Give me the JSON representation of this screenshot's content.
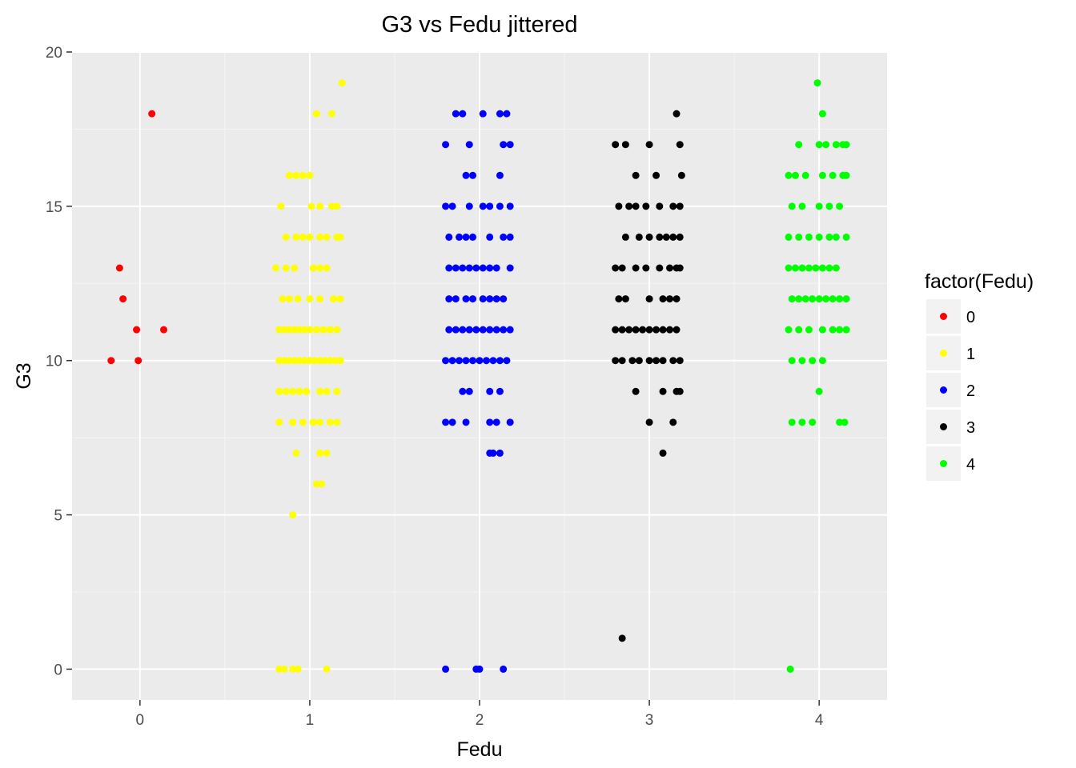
{
  "chart_data": {
    "type": "scatter",
    "title": "G3 vs Fedu jittered",
    "xlabel": "Fedu",
    "ylabel": "G3",
    "xlim": [
      -0.4,
      4.4
    ],
    "ylim": [
      -1,
      20
    ],
    "x_ticks": [
      "0",
      "1",
      "2",
      "3",
      "4"
    ],
    "y_ticks": [
      "0",
      "5",
      "10",
      "15",
      "20"
    ],
    "grid": true,
    "panel_background": "#ebebeb",
    "jitter": "horizontal, about ±0.2",
    "legend": {
      "title": "factor(Fedu)",
      "position": "right"
    },
    "series": [
      {
        "name": "0",
        "color": "#ff0000",
        "points": [
          [
            -0.17,
            10
          ],
          [
            -0.01,
            10
          ],
          [
            -0.02,
            11
          ],
          [
            0.14,
            11
          ],
          [
            -0.1,
            12
          ],
          [
            -0.12,
            13
          ],
          [
            0.07,
            18
          ]
        ]
      },
      {
        "name": "1",
        "color": "#ffff00",
        "points": [
          [
            0.82,
            0
          ],
          [
            0.85,
            0
          ],
          [
            0.9,
            0
          ],
          [
            0.93,
            0
          ],
          [
            1.1,
            0
          ],
          [
            0.9,
            5
          ],
          [
            1.04,
            6
          ],
          [
            1.07,
            6
          ],
          [
            0.92,
            7
          ],
          [
            1.06,
            7
          ],
          [
            1.1,
            7
          ],
          [
            0.82,
            8
          ],
          [
            0.9,
            8
          ],
          [
            0.96,
            8
          ],
          [
            1.02,
            8
          ],
          [
            1.06,
            8
          ],
          [
            1.12,
            8
          ],
          [
            1.16,
            8
          ],
          [
            0.82,
            9
          ],
          [
            0.86,
            9
          ],
          [
            0.9,
            9
          ],
          [
            0.94,
            9
          ],
          [
            0.98,
            9
          ],
          [
            1.06,
            9
          ],
          [
            1.1,
            9
          ],
          [
            1.16,
            9
          ],
          [
            0.82,
            10
          ],
          [
            0.85,
            10
          ],
          [
            0.88,
            10
          ],
          [
            0.91,
            10
          ],
          [
            0.94,
            10
          ],
          [
            0.97,
            10
          ],
          [
            1.0,
            10
          ],
          [
            1.03,
            10
          ],
          [
            1.06,
            10
          ],
          [
            1.09,
            10
          ],
          [
            1.12,
            10
          ],
          [
            1.15,
            10
          ],
          [
            1.18,
            10
          ],
          [
            0.82,
            11
          ],
          [
            0.85,
            11
          ],
          [
            0.88,
            11
          ],
          [
            0.91,
            11
          ],
          [
            0.94,
            11
          ],
          [
            0.97,
            11
          ],
          [
            1.0,
            11
          ],
          [
            1.04,
            11
          ],
          [
            1.08,
            11
          ],
          [
            1.12,
            11
          ],
          [
            1.16,
            11
          ],
          [
            0.84,
            12
          ],
          [
            0.88,
            12
          ],
          [
            0.93,
            12
          ],
          [
            1.0,
            12
          ],
          [
            1.06,
            12
          ],
          [
            1.14,
            12
          ],
          [
            1.18,
            12
          ],
          [
            0.8,
            13
          ],
          [
            0.86,
            13
          ],
          [
            0.91,
            13
          ],
          [
            1.02,
            13
          ],
          [
            1.06,
            13
          ],
          [
            1.1,
            13
          ],
          [
            0.86,
            14
          ],
          [
            0.92,
            14
          ],
          [
            0.96,
            14
          ],
          [
            1.0,
            14
          ],
          [
            1.06,
            14
          ],
          [
            1.1,
            14
          ],
          [
            1.16,
            14
          ],
          [
            1.18,
            14
          ],
          [
            0.83,
            15
          ],
          [
            1.01,
            15
          ],
          [
            1.06,
            15
          ],
          [
            1.13,
            15
          ],
          [
            1.16,
            15
          ],
          [
            0.88,
            16
          ],
          [
            0.92,
            16
          ],
          [
            0.96,
            16
          ],
          [
            1.0,
            16
          ],
          [
            1.04,
            18
          ],
          [
            1.13,
            18
          ],
          [
            1.19,
            19
          ]
        ]
      },
      {
        "name": "2",
        "color": "#0000ff",
        "points": [
          [
            1.8,
            0
          ],
          [
            1.98,
            0
          ],
          [
            2.0,
            0
          ],
          [
            2.14,
            0
          ],
          [
            2.06,
            7
          ],
          [
            2.08,
            7
          ],
          [
            2.12,
            7
          ],
          [
            1.8,
            8
          ],
          [
            1.84,
            8
          ],
          [
            1.92,
            8
          ],
          [
            2.06,
            8
          ],
          [
            2.1,
            8
          ],
          [
            2.18,
            8
          ],
          [
            1.9,
            9
          ],
          [
            1.94,
            9
          ],
          [
            2.06,
            9
          ],
          [
            2.12,
            9
          ],
          [
            1.8,
            10
          ],
          [
            1.84,
            10
          ],
          [
            1.88,
            10
          ],
          [
            1.92,
            10
          ],
          [
            1.96,
            10
          ],
          [
            2.0,
            10
          ],
          [
            2.04,
            10
          ],
          [
            2.08,
            10
          ],
          [
            2.12,
            10
          ],
          [
            2.16,
            10
          ],
          [
            1.82,
            11
          ],
          [
            1.86,
            11
          ],
          [
            1.9,
            11
          ],
          [
            1.94,
            11
          ],
          [
            1.98,
            11
          ],
          [
            2.02,
            11
          ],
          [
            2.06,
            11
          ],
          [
            2.1,
            11
          ],
          [
            2.14,
            11
          ],
          [
            2.18,
            11
          ],
          [
            1.82,
            12
          ],
          [
            1.86,
            12
          ],
          [
            1.92,
            12
          ],
          [
            1.96,
            12
          ],
          [
            2.02,
            12
          ],
          [
            2.06,
            12
          ],
          [
            2.1,
            12
          ],
          [
            2.14,
            12
          ],
          [
            1.82,
            13
          ],
          [
            1.86,
            13
          ],
          [
            1.9,
            13
          ],
          [
            1.94,
            13
          ],
          [
            1.98,
            13
          ],
          [
            2.02,
            13
          ],
          [
            2.06,
            13
          ],
          [
            2.1,
            13
          ],
          [
            2.18,
            13
          ],
          [
            1.82,
            14
          ],
          [
            1.88,
            14
          ],
          [
            1.92,
            14
          ],
          [
            1.96,
            14
          ],
          [
            2.06,
            14
          ],
          [
            2.14,
            14
          ],
          [
            2.18,
            14
          ],
          [
            1.8,
            15
          ],
          [
            1.84,
            15
          ],
          [
            1.94,
            15
          ],
          [
            2.02,
            15
          ],
          [
            2.06,
            15
          ],
          [
            2.12,
            15
          ],
          [
            2.18,
            15
          ],
          [
            1.92,
            16
          ],
          [
            1.96,
            16
          ],
          [
            2.12,
            16
          ],
          [
            1.8,
            17
          ],
          [
            1.94,
            17
          ],
          [
            2.14,
            17
          ],
          [
            2.18,
            17
          ],
          [
            1.86,
            18
          ],
          [
            1.9,
            18
          ],
          [
            2.02,
            18
          ],
          [
            2.12,
            18
          ],
          [
            2.16,
            18
          ]
        ]
      },
      {
        "name": "3",
        "color": "#000000",
        "points": [
          [
            2.84,
            1
          ],
          [
            3.08,
            7
          ],
          [
            3.0,
            8
          ],
          [
            3.14,
            8
          ],
          [
            2.92,
            9
          ],
          [
            3.08,
            9
          ],
          [
            3.16,
            9
          ],
          [
            3.18,
            9
          ],
          [
            2.8,
            10
          ],
          [
            2.84,
            10
          ],
          [
            2.9,
            10
          ],
          [
            2.94,
            10
          ],
          [
            3.0,
            10
          ],
          [
            3.04,
            10
          ],
          [
            3.08,
            10
          ],
          [
            3.14,
            10
          ],
          [
            3.18,
            10
          ],
          [
            2.8,
            11
          ],
          [
            2.84,
            11
          ],
          [
            2.88,
            11
          ],
          [
            2.92,
            11
          ],
          [
            2.96,
            11
          ],
          [
            3.0,
            11
          ],
          [
            3.04,
            11
          ],
          [
            3.08,
            11
          ],
          [
            3.12,
            11
          ],
          [
            3.16,
            11
          ],
          [
            2.82,
            12
          ],
          [
            2.86,
            12
          ],
          [
            3.0,
            12
          ],
          [
            3.08,
            12
          ],
          [
            3.12,
            12
          ],
          [
            3.16,
            12
          ],
          [
            2.8,
            13
          ],
          [
            2.84,
            13
          ],
          [
            2.92,
            13
          ],
          [
            2.98,
            13
          ],
          [
            3.06,
            13
          ],
          [
            3.12,
            13
          ],
          [
            3.16,
            13
          ],
          [
            3.18,
            13
          ],
          [
            2.86,
            14
          ],
          [
            2.94,
            14
          ],
          [
            3.0,
            14
          ],
          [
            3.06,
            14
          ],
          [
            3.1,
            14
          ],
          [
            3.14,
            14
          ],
          [
            3.18,
            14
          ],
          [
            2.82,
            15
          ],
          [
            2.88,
            15
          ],
          [
            2.92,
            15
          ],
          [
            2.98,
            15
          ],
          [
            3.06,
            15
          ],
          [
            3.14,
            15
          ],
          [
            3.18,
            15
          ],
          [
            2.92,
            16
          ],
          [
            3.04,
            16
          ],
          [
            3.19,
            16
          ],
          [
            2.8,
            17
          ],
          [
            2.86,
            17
          ],
          [
            3.0,
            17
          ],
          [
            3.18,
            17
          ],
          [
            3.16,
            18
          ]
        ]
      },
      {
        "name": "4",
        "color": "#00ff00",
        "points": [
          [
            3.83,
            0
          ],
          [
            3.84,
            8
          ],
          [
            3.9,
            8
          ],
          [
            3.96,
            8
          ],
          [
            4.12,
            8
          ],
          [
            4.15,
            8
          ],
          [
            4.0,
            9
          ],
          [
            3.84,
            10
          ],
          [
            3.9,
            10
          ],
          [
            3.96,
            10
          ],
          [
            4.02,
            10
          ],
          [
            3.82,
            11
          ],
          [
            3.88,
            11
          ],
          [
            3.94,
            11
          ],
          [
            4.02,
            11
          ],
          [
            4.08,
            11
          ],
          [
            4.12,
            11
          ],
          [
            4.16,
            11
          ],
          [
            3.84,
            12
          ],
          [
            3.88,
            12
          ],
          [
            3.92,
            12
          ],
          [
            3.96,
            12
          ],
          [
            4.0,
            12
          ],
          [
            4.04,
            12
          ],
          [
            4.08,
            12
          ],
          [
            4.12,
            12
          ],
          [
            4.16,
            12
          ],
          [
            3.82,
            13
          ],
          [
            3.86,
            13
          ],
          [
            3.9,
            13
          ],
          [
            3.94,
            13
          ],
          [
            3.98,
            13
          ],
          [
            4.02,
            13
          ],
          [
            4.06,
            13
          ],
          [
            4.1,
            13
          ],
          [
            3.82,
            14
          ],
          [
            3.88,
            14
          ],
          [
            3.94,
            14
          ],
          [
            4.0,
            14
          ],
          [
            4.06,
            14
          ],
          [
            4.1,
            14
          ],
          [
            4.16,
            14
          ],
          [
            3.84,
            15
          ],
          [
            3.9,
            15
          ],
          [
            4.0,
            15
          ],
          [
            4.06,
            15
          ],
          [
            4.12,
            15
          ],
          [
            3.82,
            16
          ],
          [
            3.86,
            16
          ],
          [
            3.92,
            16
          ],
          [
            4.02,
            16
          ],
          [
            4.08,
            16
          ],
          [
            4.14,
            16
          ],
          [
            4.16,
            16
          ],
          [
            3.88,
            17
          ],
          [
            4.0,
            17
          ],
          [
            4.04,
            17
          ],
          [
            4.1,
            17
          ],
          [
            4.14,
            17
          ],
          [
            4.16,
            17
          ],
          [
            4.02,
            18
          ],
          [
            3.99,
            19
          ]
        ]
      }
    ]
  }
}
